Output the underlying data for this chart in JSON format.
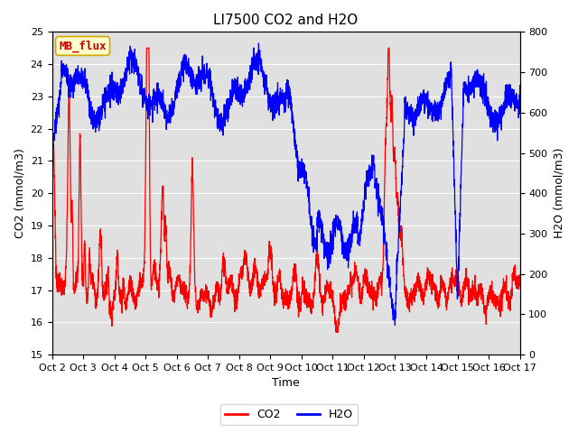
{
  "title": "LI7500 CO2 and H2O",
  "xlabel": "Time",
  "ylabel_left": "CO2 (mmol/m3)",
  "ylabel_right": "H2O (mmol/m3)",
  "ylim_left": [
    15.0,
    25.0
  ],
  "ylim_right": [
    0,
    800
  ],
  "yticks_left": [
    15.0,
    16.0,
    17.0,
    18.0,
    19.0,
    20.0,
    21.0,
    22.0,
    23.0,
    24.0,
    25.0
  ],
  "yticks_right": [
    0,
    100,
    200,
    300,
    400,
    500,
    600,
    700,
    800
  ],
  "xtick_labels": [
    "Oct 2",
    "Oct 3",
    "Oct 4",
    "Oct 5",
    "Oct 6",
    "Oct 7",
    "Oct 8",
    "Oct 9",
    "Oct 10",
    "Oct 11",
    "Oct 12",
    "Oct 13",
    "Oct 14",
    "Oct 15",
    "Oct 16",
    "Oct 17"
  ],
  "legend_labels": [
    "CO2",
    "H2O"
  ],
  "legend_colors": [
    "red",
    "blue"
  ],
  "watermark_text": "MB_flux",
  "watermark_bg": "#ffffcc",
  "watermark_fg": "#cc0000",
  "watermark_edge": "#ccaa00",
  "bg_color": "#e0e0e0",
  "co2_color": "red",
  "h2o_color": "blue",
  "title_fontsize": 11,
  "axis_fontsize": 9,
  "tick_fontsize": 8,
  "linewidth": 0.9
}
